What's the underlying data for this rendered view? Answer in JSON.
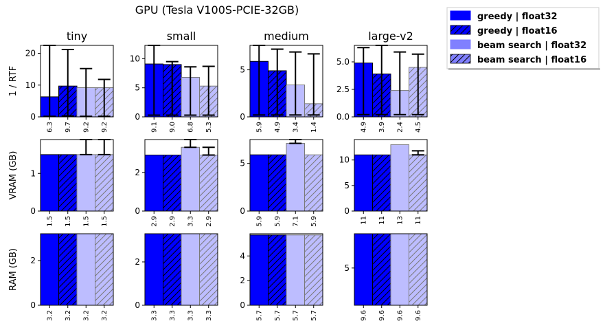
{
  "figure": {
    "suptitle": "GPU (Tesla V100S-PCIE-32GB)"
  },
  "legend": {
    "placement": "top-right, outside axes",
    "entries": [
      {
        "label": "greedy | float32",
        "color": "#0000ff",
        "alpha": 1.0,
        "hatch": false
      },
      {
        "label": "greedy | float16",
        "color": "#0000ff",
        "alpha": 1.0,
        "hatch": true
      },
      {
        "label": "beam search | float32",
        "color": "#8080ff",
        "alpha": 1.0,
        "hatch": false
      },
      {
        "label": "beam search | float16",
        "color": "#8080ff",
        "alpha": 1.0,
        "hatch": true
      }
    ]
  },
  "chart_data": [
    {
      "type": "bar",
      "model": "tiny",
      "title": "tiny",
      "ylabel": "1 / RTF",
      "ylim": [
        0,
        22.5
      ],
      "yticks": [
        0,
        10,
        20
      ],
      "categories": [
        "greedy | float32",
        "greedy | float16",
        "beam search | float32",
        "beam search | float16"
      ],
      "values": [
        6.3,
        9.7,
        9.2,
        9.2
      ],
      "value_labels": [
        "6.3",
        "9.7",
        "9.2",
        "9.2"
      ],
      "errors": [
        [
          0.2,
          22.5
        ],
        [
          0.3,
          21.2
        ],
        [
          0.2,
          15.2
        ],
        [
          0.2,
          11.8
        ]
      ]
    },
    {
      "type": "bar",
      "model": "small",
      "title": "small",
      "ylabel": "",
      "ylim": [
        0,
        12.3
      ],
      "yticks": [
        0,
        5,
        10
      ],
      "categories": [
        "greedy | float32",
        "greedy | float16",
        "beam search | float32",
        "beam search | float16"
      ],
      "values": [
        9.1,
        9.0,
        6.8,
        5.3
      ],
      "value_labels": [
        "9.1",
        "9.0",
        "6.8",
        "5.3"
      ],
      "errors": [
        [
          0.3,
          12.3
        ],
        [
          0.3,
          9.5
        ],
        [
          0.3,
          8.6
        ],
        [
          0.3,
          8.7
        ]
      ]
    },
    {
      "type": "bar",
      "model": "medium",
      "title": "medium",
      "ylabel": "",
      "ylim": [
        0,
        7.6
      ],
      "yticks": [
        0,
        5
      ],
      "categories": [
        "greedy | float32",
        "greedy | float16",
        "beam search | float32",
        "beam search | float16"
      ],
      "values": [
        5.9,
        4.9,
        3.4,
        1.4
      ],
      "value_labels": [
        "5.9",
        "4.9",
        "3.4",
        "1.4"
      ],
      "errors": [
        [
          0.2,
          7.6
        ],
        [
          0.2,
          7.2
        ],
        [
          0.2,
          6.9
        ],
        [
          0.2,
          6.7
        ]
      ]
    },
    {
      "type": "bar",
      "model": "large-v2",
      "title": "large-v2",
      "ylabel": "",
      "ylim": [
        0,
        6.5
      ],
      "yticks": [
        0,
        2.5,
        5.0
      ],
      "ytick_labels": [
        "0.0",
        "2.5",
        "5.0"
      ],
      "categories": [
        "greedy | float32",
        "greedy | float16",
        "beam search | float32",
        "beam search | float16"
      ],
      "values": [
        4.9,
        3.9,
        2.4,
        4.5
      ],
      "value_labels": [
        "4.9",
        "3.9",
        "2.4",
        "4.5"
      ],
      "errors": [
        [
          0.2,
          6.3
        ],
        [
          0.2,
          6.5
        ],
        [
          0.2,
          5.9
        ],
        [
          0.2,
          5.7
        ]
      ]
    },
    {
      "type": "bar",
      "model": "tiny",
      "title": "",
      "ylabel": "VRAM (GB)",
      "ylim": [
        0,
        1.9
      ],
      "yticks": [
        0,
        1
      ],
      "categories": [
        "greedy | float32",
        "greedy | float16",
        "beam search | float32",
        "beam search | float16"
      ],
      "values": [
        1.5,
        1.5,
        1.5,
        1.5
      ],
      "value_labels": [
        "1.5",
        "1.5",
        "1.5",
        "1.5"
      ],
      "errors": [
        null,
        null,
        [
          1.5,
          1.9
        ],
        [
          1.5,
          1.9
        ]
      ]
    },
    {
      "type": "bar",
      "model": "small",
      "title": "",
      "ylabel": "",
      "ylim": [
        0,
        3.7
      ],
      "yticks": [
        0,
        2
      ],
      "categories": [
        "greedy | float32",
        "greedy | float16",
        "beam search | float32",
        "beam search | float16"
      ],
      "values": [
        2.9,
        2.9,
        3.3,
        2.9
      ],
      "value_labels": [
        "2.9",
        "2.9",
        "3.3",
        "2.9"
      ],
      "errors": [
        null,
        null,
        [
          3.3,
          3.7
        ],
        [
          2.9,
          3.3
        ]
      ]
    },
    {
      "type": "bar",
      "model": "medium",
      "title": "",
      "ylabel": "",
      "ylim": [
        0,
        7.5
      ],
      "yticks": [
        0,
        5
      ],
      "categories": [
        "greedy | float32",
        "greedy | float16",
        "beam search | float32",
        "beam search | float16"
      ],
      "values": [
        5.9,
        5.9,
        7.1,
        5.9
      ],
      "value_labels": [
        "5.9",
        "5.9",
        "7.1",
        "5.9"
      ],
      "errors": [
        null,
        null,
        [
          7.1,
          7.5
        ],
        null
      ]
    },
    {
      "type": "bar",
      "model": "large-v2",
      "title": "",
      "ylabel": "",
      "ylim": [
        0,
        14
      ],
      "yticks": [
        0,
        5,
        10
      ],
      "categories": [
        "greedy | float32",
        "greedy | float16",
        "beam search | float32",
        "beam search | float16"
      ],
      "values": [
        11,
        11,
        13,
        11
      ],
      "value_labels": [
        "11",
        "11",
        "13",
        "11"
      ],
      "errors": [
        null,
        null,
        null,
        [
          11,
          11.8
        ]
      ]
    },
    {
      "type": "bar",
      "model": "tiny",
      "title": "",
      "ylabel": "RAM (GB)",
      "ylim": [
        0,
        3.2
      ],
      "yticks": [
        0,
        2
      ],
      "categories": [
        "greedy | float32",
        "greedy | float16",
        "beam search | float32",
        "beam search | float16"
      ],
      "values": [
        3.2,
        3.2,
        3.2,
        3.2
      ],
      "value_labels": [
        "3.2",
        "3.2",
        "3.2",
        "3.2"
      ],
      "errors": [
        null,
        null,
        null,
        null
      ]
    },
    {
      "type": "bar",
      "model": "small",
      "title": "",
      "ylabel": "",
      "ylim": [
        0,
        3.3
      ],
      "yticks": [
        0,
        2
      ],
      "categories": [
        "greedy | float32",
        "greedy | float16",
        "beam search | float32",
        "beam search | float16"
      ],
      "values": [
        3.3,
        3.3,
        3.3,
        3.3
      ],
      "value_labels": [
        "3.3",
        "3.3",
        "3.3",
        "3.3"
      ],
      "errors": [
        null,
        null,
        null,
        null
      ]
    },
    {
      "type": "bar",
      "model": "medium",
      "title": "",
      "ylabel": "",
      "ylim": [
        0,
        5.8
      ],
      "yticks": [
        0,
        2,
        4
      ],
      "categories": [
        "greedy | float32",
        "greedy | float16",
        "beam search | float32",
        "beam search | float16"
      ],
      "values": [
        5.7,
        5.7,
        5.7,
        5.7
      ],
      "value_labels": [
        "5.7",
        "5.7",
        "5.7",
        "5.7"
      ],
      "errors": [
        null,
        null,
        null,
        null
      ]
    },
    {
      "type": "bar",
      "model": "large-v2",
      "title": "",
      "ylabel": "",
      "ylim": [
        0,
        9.6
      ],
      "yticks": [
        5
      ],
      "categories": [
        "greedy | float32",
        "greedy | float16",
        "beam search | float32",
        "beam search | float16"
      ],
      "values": [
        9.6,
        9.6,
        9.6,
        9.6
      ],
      "value_labels": [
        "9.6",
        "9.6",
        "9.6",
        "9.6"
      ],
      "errors": [
        null,
        null,
        null,
        null
      ]
    }
  ]
}
